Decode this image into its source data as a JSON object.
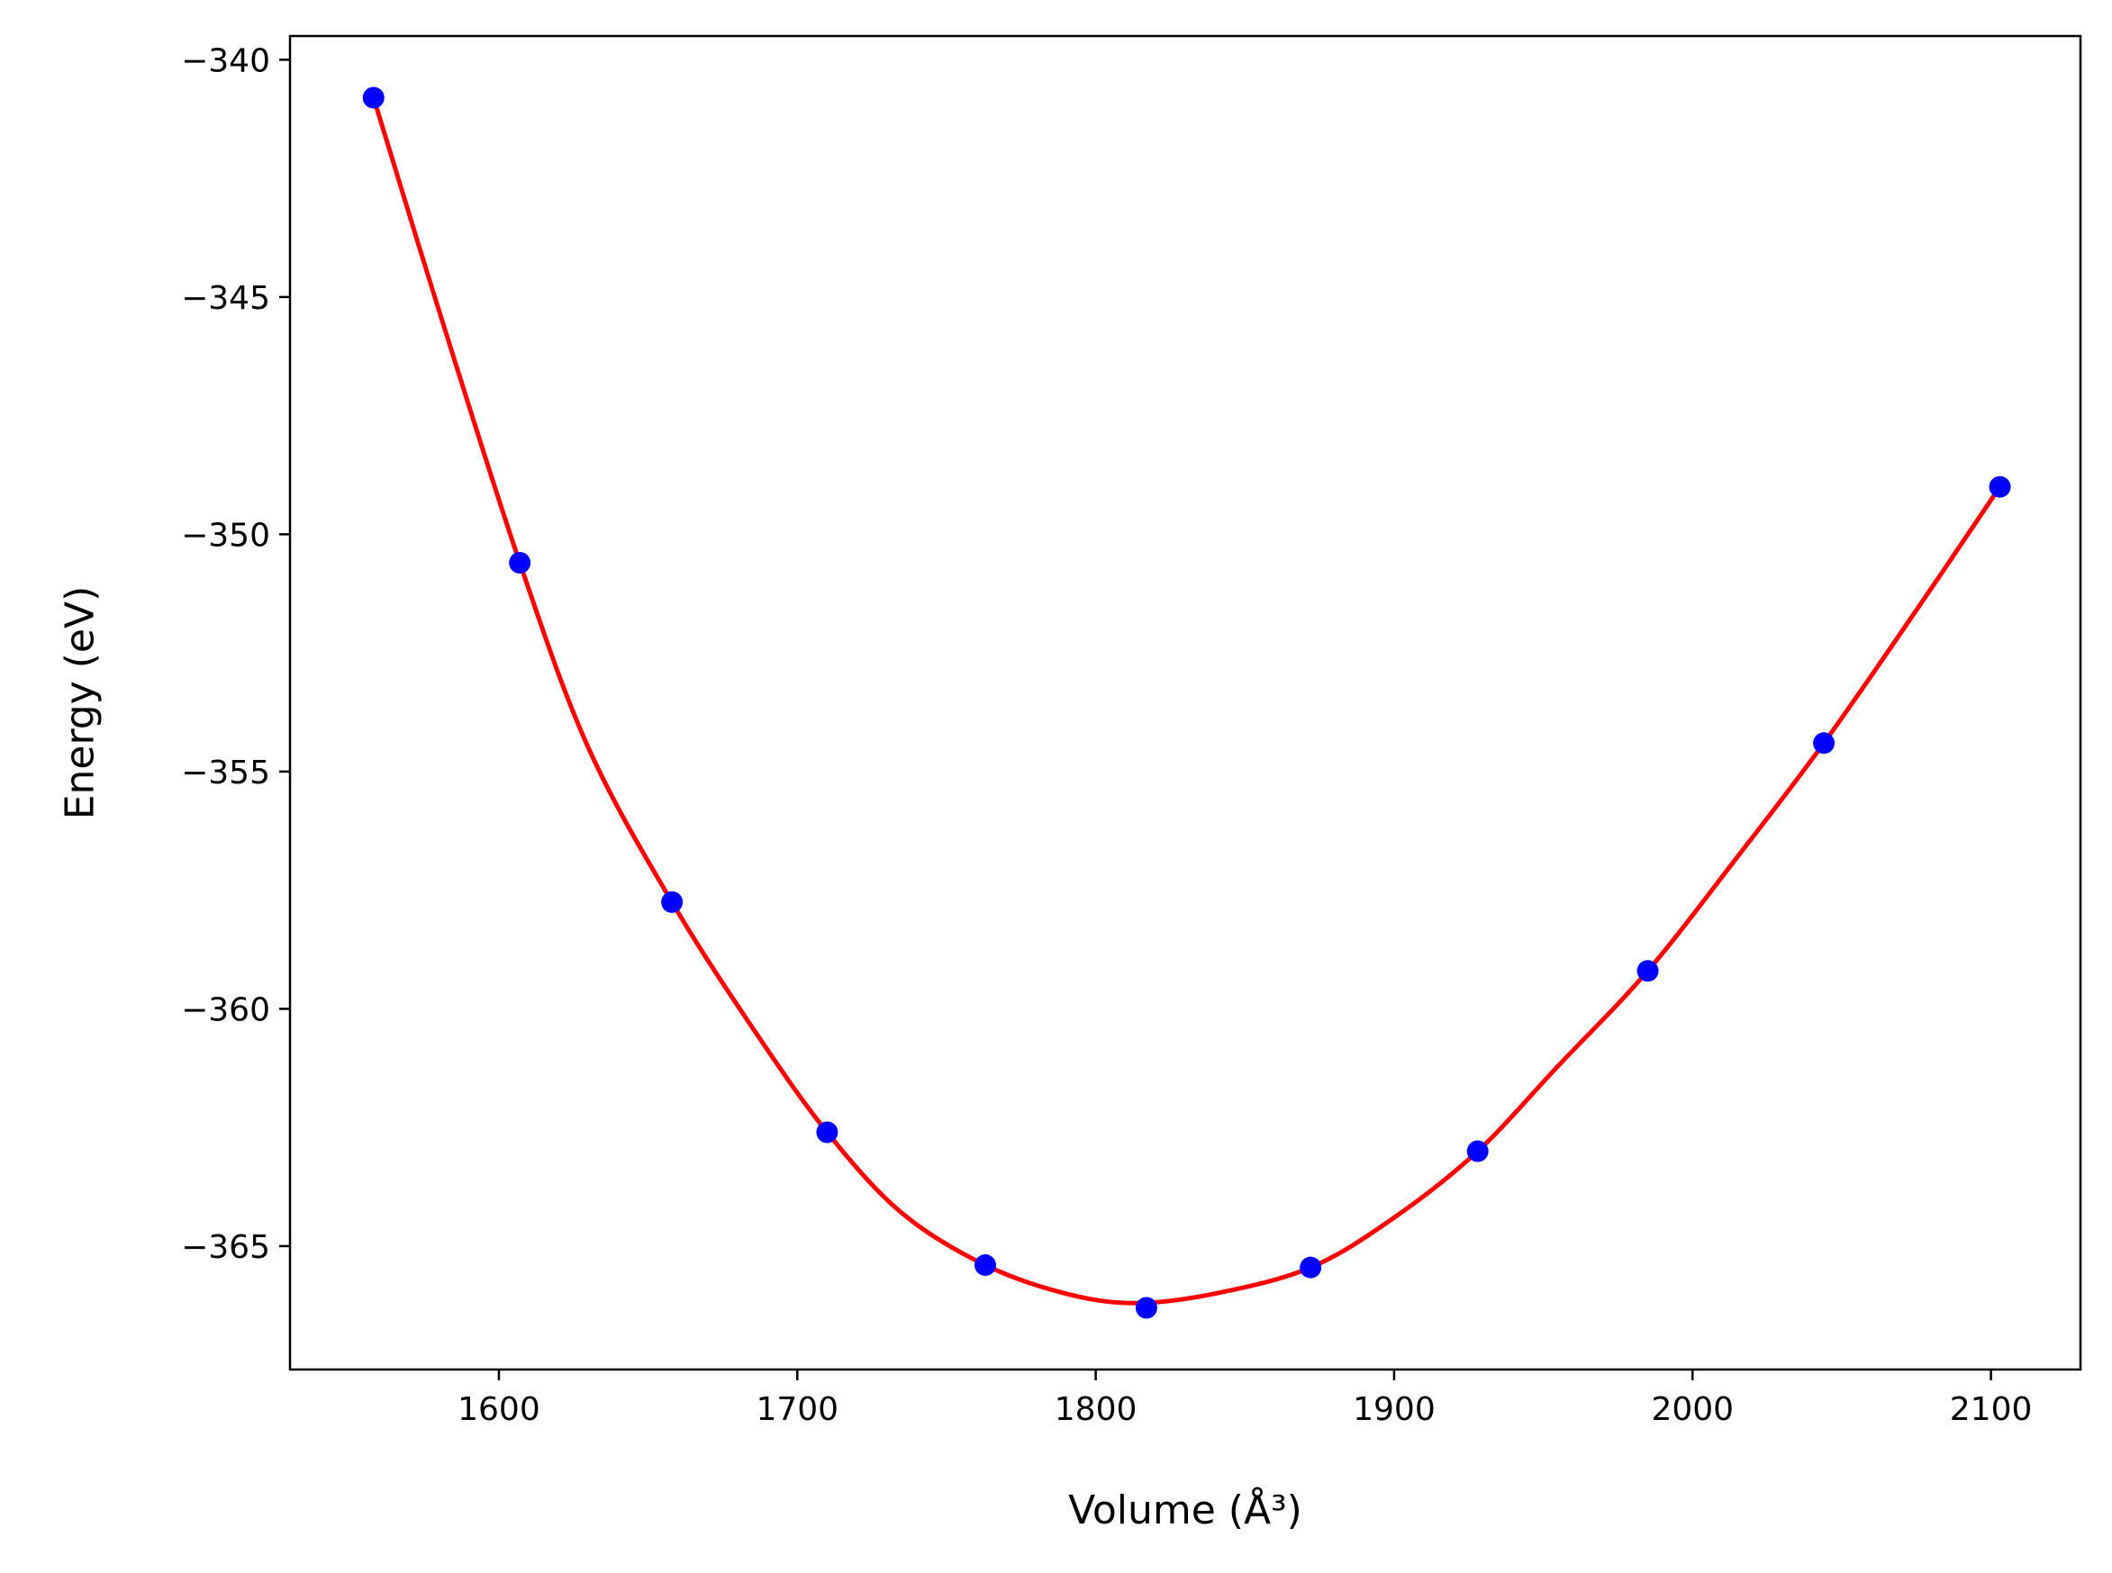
{
  "chart_data": {
    "type": "scatter",
    "title": "",
    "xlabel": "Volume (Å³)",
    "ylabel": "Energy (eV)",
    "xlim": [
      1530,
      2130
    ],
    "ylim": [
      -367.6,
      -339.5
    ],
    "xticks": [
      1600,
      1700,
      1800,
      1900,
      2000,
      2100
    ],
    "yticks": [
      -340,
      -345,
      -350,
      -355,
      -360,
      -365
    ],
    "xtick_labels": [
      "1600",
      "1700",
      "1800",
      "1900",
      "2000",
      "2100"
    ],
    "ytick_labels": [
      "−340",
      "−345",
      "−350",
      "−355",
      "−360",
      "−365"
    ],
    "grid": false,
    "series": [
      {
        "kind": "scatter",
        "color": "#0000ff",
        "x": [
          1558,
          1607,
          1658,
          1710,
          1763,
          1817,
          1872,
          1928,
          1985,
          2044,
          2103
        ],
        "y": [
          -340.8,
          -350.6,
          -357.75,
          -362.6,
          -365.4,
          -366.3,
          -365.45,
          -363.0,
          -359.2,
          -354.4,
          -349.0
        ]
      },
      {
        "kind": "line",
        "color": "#ff0000",
        "x": [
          1558,
          1580,
          1607,
          1630,
          1658,
          1685,
          1710,
          1735,
          1763,
          1790,
          1813,
          1840,
          1872,
          1900,
          1928,
          1955,
          1985,
          2015,
          2044,
          2075,
          2103
        ],
        "y": [
          -340.8,
          -345.3,
          -350.6,
          -354.5,
          -357.75,
          -360.4,
          -362.6,
          -364.3,
          -365.4,
          -366.0,
          -366.2,
          -366.0,
          -365.45,
          -364.4,
          -363.0,
          -361.2,
          -359.2,
          -356.8,
          -354.4,
          -351.6,
          -349.0
        ]
      }
    ]
  }
}
